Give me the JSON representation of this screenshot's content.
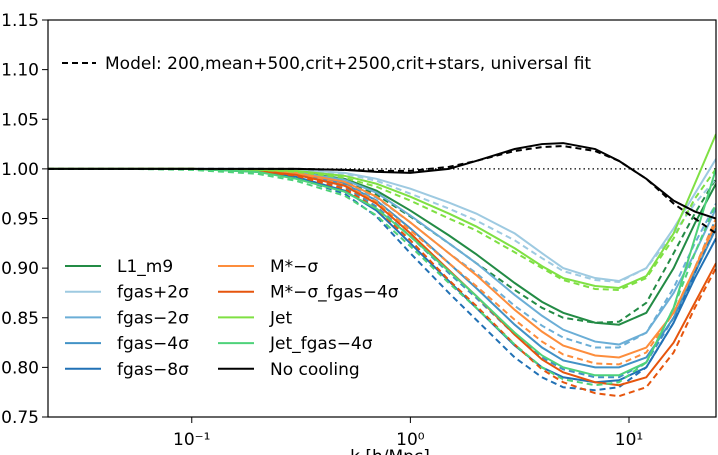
{
  "chart_data": {
    "type": "line",
    "xlabel": "k [h/Mpc]",
    "x": [
      0.022,
      0.05,
      0.1,
      0.2,
      0.3,
      0.5,
      0.7,
      1,
      1.5,
      2,
      3,
      4,
      5,
      7,
      9,
      12,
      16,
      20,
      25
    ],
    "xlim": [
      0.022,
      25
    ],
    "xscale": "log",
    "xticks": [
      {
        "value": 0.1,
        "label": "10⁻¹"
      },
      {
        "value": 1,
        "label": "10⁰"
      },
      {
        "value": 10,
        "label": "10¹"
      }
    ],
    "ylim": [
      0.75,
      1.15
    ],
    "yticks": [
      0.75,
      {
        "value": 0.8,
        "label": "0.80"
      },
      0.85,
      {
        "value": 0.9,
        "label": "0.90"
      },
      0.95,
      {
        "value": 1.0,
        "label": "1.00"
      },
      1.05,
      {
        "value": 1.1,
        "label": "1.10"
      },
      1.15
    ],
    "reference_line": 1.0,
    "fit_legend": "Model: 200,mean+500,crit+2500,crit+stars, universal fit",
    "series": [
      {
        "name": "L1_m9",
        "color": "#238b45",
        "values": [
          1,
          1,
          1,
          0.999,
          0.997,
          0.99,
          0.978,
          0.958,
          0.933,
          0.914,
          0.885,
          0.866,
          0.855,
          0.845,
          0.843,
          0.855,
          0.9,
          0.945,
          0.985
        ],
        "fit_values": [
          1,
          1,
          1,
          0.999,
          0.996,
          0.987,
          0.974,
          0.952,
          0.925,
          0.905,
          0.878,
          0.86,
          0.85,
          0.845,
          0.846,
          0.865,
          0.915,
          0.955,
          0.99
        ]
      },
      {
        "name": "fgas+2σ",
        "color": "#9ecae1",
        "values": [
          1,
          1,
          1,
          1,
          0.999,
          0.996,
          0.99,
          0.98,
          0.966,
          0.955,
          0.935,
          0.915,
          0.9,
          0.89,
          0.887,
          0.9,
          0.94,
          0.975,
          1.01
        ],
        "fit_values": [
          1,
          1,
          1,
          1,
          0.999,
          0.995,
          0.988,
          0.975,
          0.96,
          0.948,
          0.928,
          0.91,
          0.897,
          0.888,
          0.886,
          0.9,
          0.935,
          0.965,
          0.99
        ]
      },
      {
        "name": "fgas−2σ",
        "color": "#6baed6",
        "values": [
          1,
          1,
          1,
          0.999,
          0.997,
          0.989,
          0.976,
          0.953,
          0.925,
          0.905,
          0.873,
          0.852,
          0.838,
          0.826,
          0.823,
          0.835,
          0.875,
          0.915,
          0.96
        ],
        "fit_values": [
          1,
          1,
          1,
          0.999,
          0.996,
          0.986,
          0.971,
          0.946,
          0.915,
          0.895,
          0.862,
          0.842,
          0.83,
          0.82,
          0.82,
          0.835,
          0.88,
          0.925,
          0.965
        ]
      },
      {
        "name": "fgas−4σ",
        "color": "#4292c6",
        "values": [
          1,
          1,
          1,
          0.998,
          0.995,
          0.985,
          0.968,
          0.94,
          0.905,
          0.88,
          0.843,
          0.82,
          0.807,
          0.8,
          0.8,
          0.81,
          0.85,
          0.895,
          0.94
        ],
        "fit_values": [
          1,
          1,
          1,
          0.998,
          0.994,
          0.982,
          0.962,
          0.932,
          0.895,
          0.87,
          0.833,
          0.81,
          0.798,
          0.79,
          0.79,
          0.805,
          0.85,
          0.9,
          0.95
        ]
      },
      {
        "name": "fgas−8σ",
        "color": "#2171b5",
        "values": [
          1,
          1,
          1,
          0.997,
          0.992,
          0.978,
          0.958,
          0.925,
          0.887,
          0.86,
          0.822,
          0.8,
          0.79,
          0.785,
          0.787,
          0.8,
          0.845,
          0.89,
          0.93
        ],
        "fit_values": [
          1,
          1,
          1,
          0.997,
          0.991,
          0.975,
          0.952,
          0.915,
          0.875,
          0.848,
          0.81,
          0.79,
          0.78,
          0.777,
          0.78,
          0.8,
          0.845,
          0.895,
          0.945
        ]
      },
      {
        "name": "M*−σ",
        "color": "#fd8d3c",
        "values": [
          1,
          1,
          1,
          0.999,
          0.996,
          0.987,
          0.972,
          0.946,
          0.915,
          0.893,
          0.858,
          0.836,
          0.822,
          0.812,
          0.81,
          0.82,
          0.855,
          0.9,
          0.945
        ],
        "fit_values": [
          1,
          1,
          1,
          0.999,
          0.995,
          0.984,
          0.967,
          0.938,
          0.905,
          0.882,
          0.848,
          0.826,
          0.813,
          0.804,
          0.803,
          0.815,
          0.855,
          0.9,
          0.95
        ]
      },
      {
        "name": "M*−σ_fgas−4σ",
        "color": "#e6550d",
        "values": [
          1,
          1,
          1,
          0.998,
          0.994,
          0.983,
          0.965,
          0.935,
          0.898,
          0.872,
          0.833,
          0.808,
          0.795,
          0.785,
          0.782,
          0.79,
          0.825,
          0.865,
          0.905
        ],
        "fit_values": [
          1,
          1,
          1,
          0.998,
          0.993,
          0.98,
          0.96,
          0.928,
          0.888,
          0.862,
          0.823,
          0.798,
          0.785,
          0.774,
          0.771,
          0.78,
          0.815,
          0.86,
          0.9
        ]
      },
      {
        "name": "Jet",
        "color": "#7fe043",
        "values": [
          1,
          1,
          1,
          0.999,
          0.998,
          0.993,
          0.985,
          0.972,
          0.955,
          0.942,
          0.92,
          0.902,
          0.89,
          0.882,
          0.88,
          0.892,
          0.935,
          0.985,
          1.035
        ],
        "fit_values": [
          1,
          1,
          1,
          0.999,
          0.997,
          0.991,
          0.982,
          0.968,
          0.95,
          0.938,
          0.916,
          0.9,
          0.888,
          0.879,
          0.878,
          0.89,
          0.93,
          0.97,
          1.0
        ]
      },
      {
        "name": "Jet_fgas−4σ",
        "color": "#4ed27a",
        "values": [
          1,
          1,
          1,
          0.997,
          0.99,
          0.977,
          0.96,
          0.932,
          0.897,
          0.872,
          0.835,
          0.812,
          0.8,
          0.792,
          0.792,
          0.805,
          0.86,
          0.93,
          1.0
        ],
        "fit_values": [
          1,
          1,
          0.999,
          0.995,
          0.988,
          0.973,
          0.953,
          0.922,
          0.885,
          0.86,
          0.823,
          0.8,
          0.788,
          0.782,
          0.785,
          0.805,
          0.86,
          0.915,
          0.965
        ]
      },
      {
        "name": "No cooling",
        "color": "#000000",
        "values": [
          1,
          1,
          1,
          1,
          1,
          0.999,
          0.997,
          0.996,
          1.0,
          1.008,
          1.02,
          1.025,
          1.026,
          1.02,
          1.008,
          0.99,
          0.968,
          0.957,
          0.95
        ],
        "fit_values": [
          1,
          1,
          1,
          1,
          1,
          0.999,
          0.998,
          0.998,
          1.002,
          1.008,
          1.018,
          1.022,
          1.023,
          1.018,
          1.008,
          0.99,
          0.965,
          0.95,
          0.935
        ]
      }
    ]
  }
}
